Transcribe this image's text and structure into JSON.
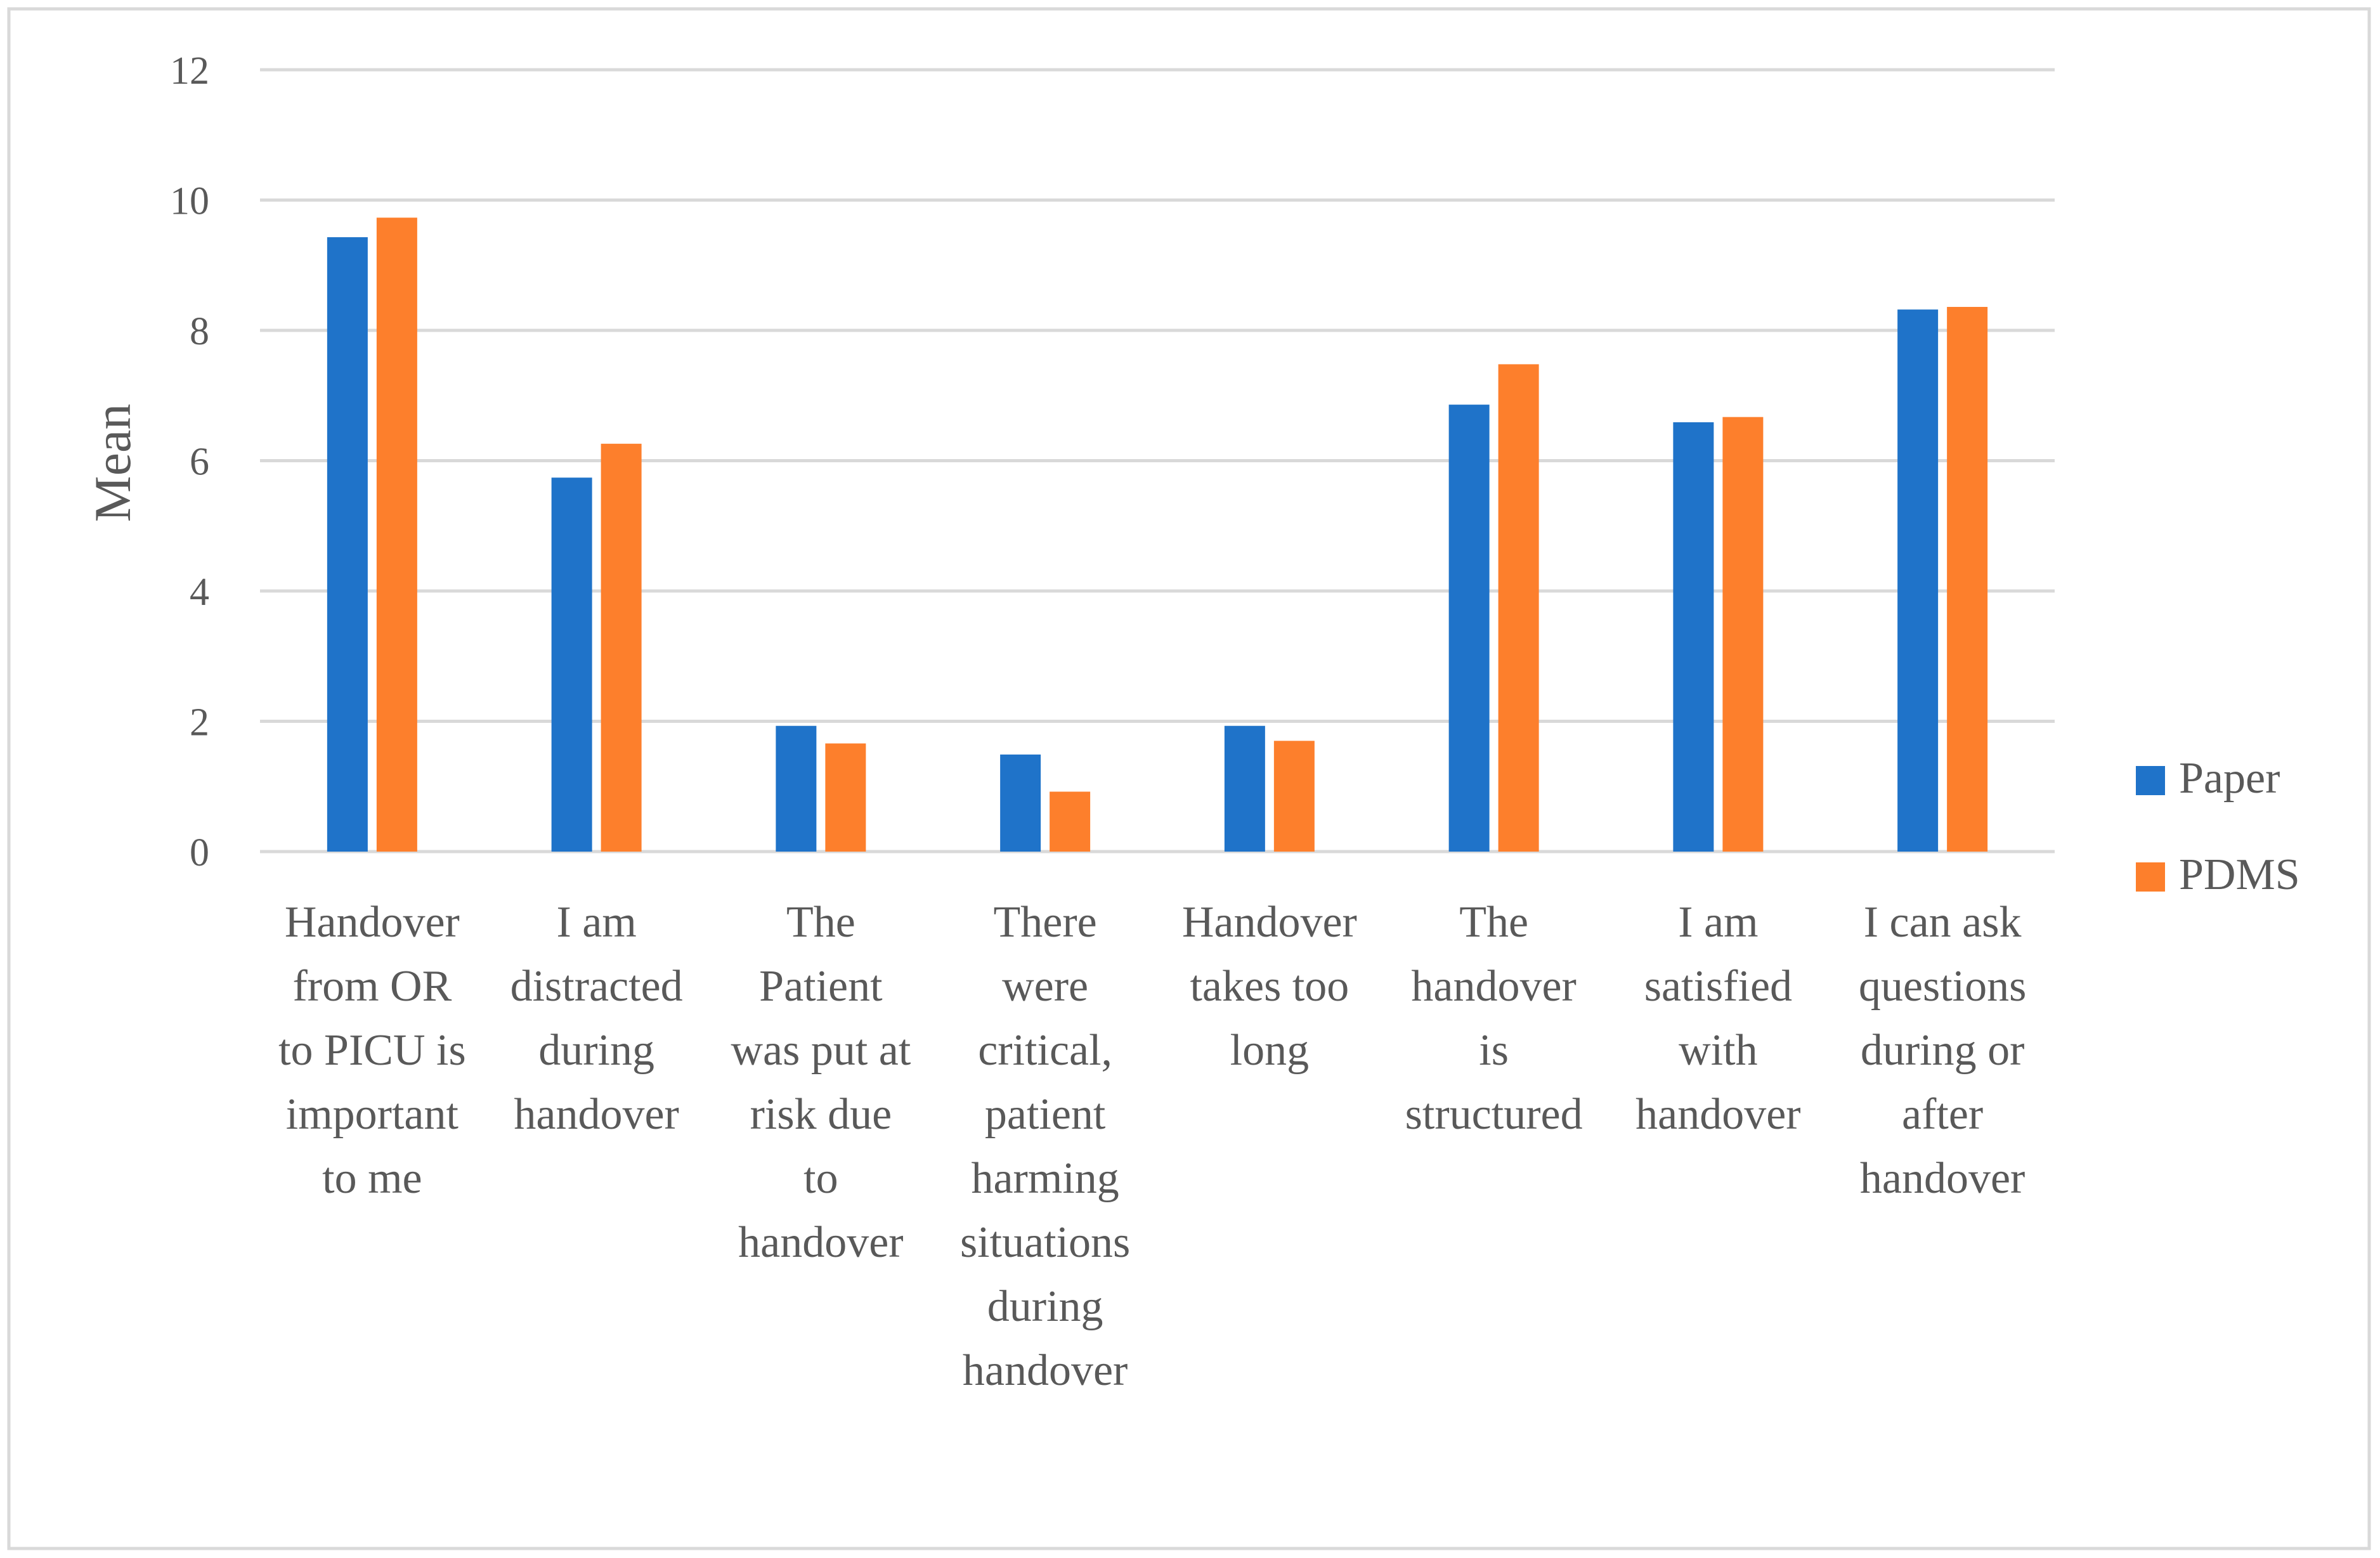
{
  "chart_data": {
    "type": "bar",
    "title": "",
    "ylabel": "Mean",
    "xlabel": "",
    "ylim": [
      0,
      12
    ],
    "yticks": [
      0,
      2,
      4,
      6,
      8,
      10,
      12
    ],
    "grid": true,
    "legend_position": "right",
    "categories": [
      [
        "Handover",
        "from OR",
        "to PICU is",
        "important",
        "to me"
      ],
      [
        "I am",
        "distracted",
        "during",
        "handover"
      ],
      [
        "The",
        "Patient",
        "was put at",
        "risk due",
        "to",
        "handover"
      ],
      [
        "There",
        "were",
        "critical,",
        "patient",
        "harming",
        "situations",
        "during",
        "handover"
      ],
      [
        "Handover",
        "takes too",
        "long"
      ],
      [
        "The",
        "handover",
        "is",
        "structured"
      ],
      [
        "I am",
        "satisfied",
        "with",
        "handover"
      ],
      [
        "I can ask",
        "questions",
        "during or",
        "after",
        "handover"
      ]
    ],
    "series": [
      {
        "name": "Paper",
        "color": "#1f73c9",
        "values": [
          9.43,
          5.74,
          1.93,
          1.49,
          1.93,
          6.86,
          6.59,
          8.32
        ]
      },
      {
        "name": "PDMS",
        "color": "#fd7f2c",
        "values": [
          9.73,
          6.26,
          1.66,
          0.92,
          1.7,
          7.48,
          6.67,
          8.36
        ]
      }
    ]
  }
}
